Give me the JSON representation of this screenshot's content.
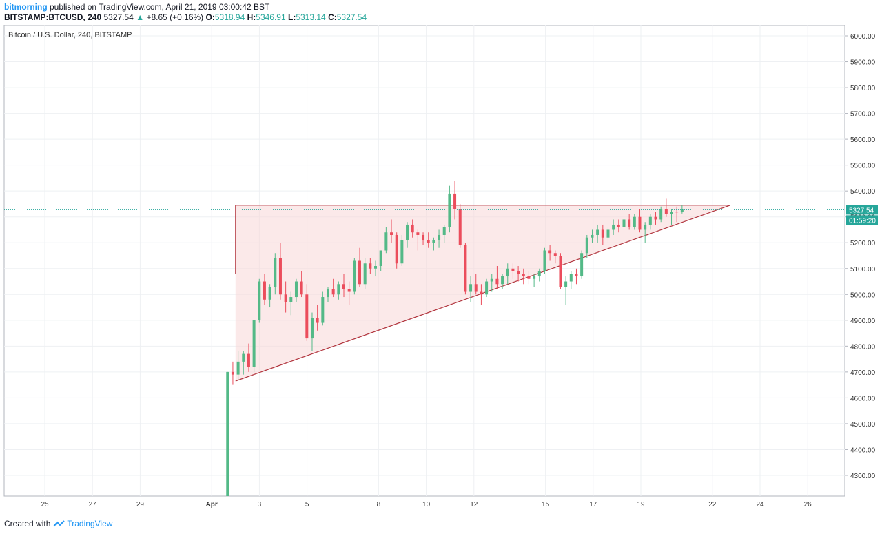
{
  "header": {
    "publisher": "bitmorning",
    "published_text": "published on TradingView.com, April 21, 2019 03:00:42 BST",
    "symbol": "BITSTAMP:BTCUSD, 240",
    "last": "5327.54",
    "change": "+8.65 (+0.16%)",
    "o_label": "O:",
    "o_value": "5318.94",
    "h_label": "H:",
    "h_value": "5346.91",
    "l_label": "L:",
    "l_value": "5313.14",
    "c_label": "C:",
    "c_value": "5327.54"
  },
  "footer": {
    "created_with": "Created with",
    "brand": "TradingView",
    "brand_icon": "tradingview-logo-icon"
  },
  "colors": {
    "up": "#53b987",
    "down": "#eb4d5c",
    "triangle_line": "#b2363f",
    "triangle_fill": "#f8d7d7",
    "price_line": "#26a69a",
    "grid": "#eef0f3"
  },
  "chart_data": {
    "type": "candlestick",
    "title": "Bitcoin / U.S. Dollar, 240, BITSTAMP",
    "ylim": [
      4220,
      6040
    ],
    "y_ticks": [
      "6000.00",
      "5900.00",
      "5800.00",
      "5700.00",
      "5600.00",
      "5500.00",
      "5400.00",
      "5300.00",
      "5200.00",
      "5100.00",
      "5000.00",
      "4900.00",
      "4800.00",
      "4700.00",
      "4600.00",
      "4500.00",
      "4400.00",
      "4300.00"
    ],
    "x_ticks": [
      "25",
      "27",
      "29",
      "Apr",
      "3",
      "5",
      "8",
      "10",
      "12",
      "15",
      "17",
      "19",
      "22",
      "24",
      "26"
    ],
    "x_tick_dates": [
      "2019-03-25",
      "2019-03-27",
      "2019-03-29",
      "2019-04-01",
      "2019-04-03",
      "2019-04-05",
      "2019-04-08",
      "2019-04-10",
      "2019-04-12",
      "2019-04-15",
      "2019-04-17",
      "2019-04-19",
      "2019-04-22",
      "2019-04-24",
      "2019-04-26"
    ],
    "price_label": "5327.54",
    "countdown_label": "01:59:20",
    "last_price": 5327.54,
    "candles": [
      [
        4110,
        4700,
        4080,
        4700
      ],
      [
        4700,
        4740,
        4650,
        4690
      ],
      [
        4690,
        4780,
        4670,
        4740
      ],
      [
        4740,
        4780,
        4690,
        4770
      ],
      [
        4770,
        4810,
        4700,
        4720
      ],
      [
        4720,
        4900,
        4700,
        4900
      ],
      [
        4900,
        5060,
        4890,
        5050
      ],
      [
        5050,
        5080,
        4960,
        4980
      ],
      [
        4980,
        5040,
        4950,
        5030
      ],
      [
        5030,
        5160,
        5000,
        5140
      ],
      [
        5140,
        5200,
        4980,
        5000
      ],
      [
        5000,
        5050,
        4930,
        4970
      ],
      [
        4970,
        5010,
        4920,
        4990
      ],
      [
        4990,
        5060,
        4970,
        5050
      ],
      [
        5050,
        5090,
        4990,
        5000
      ],
      [
        5000,
        5040,
        4820,
        4830
      ],
      [
        4830,
        4930,
        4780,
        4910
      ],
      [
        4910,
        4960,
        4860,
        4890
      ],
      [
        4890,
        5010,
        4880,
        4990
      ],
      [
        4990,
        5030,
        4970,
        5020
      ],
      [
        5020,
        5060,
        4990,
        5000
      ],
      [
        5000,
        5050,
        4980,
        5040
      ],
      [
        5040,
        5080,
        4990,
        5020
      ],
      [
        5020,
        5050,
        4960,
        5010
      ],
      [
        5010,
        5140,
        5000,
        5130
      ],
      [
        5130,
        5180,
        5030,
        5040
      ],
      [
        5040,
        5140,
        5020,
        5120
      ],
      [
        5120,
        5140,
        5080,
        5100
      ],
      [
        5100,
        5130,
        5070,
        5110
      ],
      [
        5110,
        5170,
        5090,
        5170
      ],
      [
        5170,
        5260,
        5160,
        5240
      ],
      [
        5240,
        5290,
        5200,
        5230
      ],
      [
        5230,
        5240,
        5100,
        5120
      ],
      [
        5120,
        5230,
        5110,
        5210
      ],
      [
        5210,
        5280,
        5180,
        5270
      ],
      [
        5270,
        5290,
        5220,
        5240
      ],
      [
        5240,
        5250,
        5170,
        5230
      ],
      [
        5230,
        5240,
        5190,
        5210
      ],
      [
        5210,
        5240,
        5180,
        5200
      ],
      [
        5200,
        5220,
        5170,
        5210
      ],
      [
        5210,
        5250,
        5180,
        5230
      ],
      [
        5230,
        5270,
        5200,
        5260
      ],
      [
        5260,
        5420,
        5240,
        5390
      ],
      [
        5390,
        5440,
        5290,
        5330
      ],
      [
        5330,
        5350,
        5180,
        5190
      ],
      [
        5190,
        5200,
        5000,
        5010
      ],
      [
        5010,
        5070,
        4970,
        5040
      ],
      [
        5040,
        5080,
        5000,
        5010
      ],
      [
        5010,
        5040,
        4960,
        5000
      ],
      [
        5000,
        5060,
        4990,
        5050
      ],
      [
        5050,
        5080,
        5010,
        5060
      ],
      [
        5060,
        5110,
        5020,
        5040
      ],
      [
        5040,
        5080,
        5020,
        5070
      ],
      [
        5070,
        5120,
        5040,
        5100
      ],
      [
        5100,
        5120,
        5060,
        5090
      ],
      [
        5090,
        5110,
        5050,
        5080
      ],
      [
        5080,
        5100,
        5040,
        5070
      ],
      [
        5070,
        5090,
        5040,
        5060
      ],
      [
        5060,
        5080,
        5030,
        5070
      ],
      [
        5070,
        5100,
        5050,
        5090
      ],
      [
        5090,
        5180,
        5080,
        5170
      ],
      [
        5170,
        5190,
        5130,
        5160
      ],
      [
        5160,
        5170,
        5120,
        5150
      ],
      [
        5150,
        5160,
        5020,
        5030
      ],
      [
        5030,
        5070,
        4960,
        5050
      ],
      [
        5050,
        5090,
        5020,
        5080
      ],
      [
        5080,
        5100,
        5040,
        5070
      ],
      [
        5070,
        5170,
        5060,
        5160
      ],
      [
        5160,
        5230,
        5140,
        5220
      ],
      [
        5220,
        5250,
        5200,
        5230
      ],
      [
        5230,
        5270,
        5200,
        5250
      ],
      [
        5250,
        5270,
        5190,
        5220
      ],
      [
        5220,
        5260,
        5200,
        5250
      ],
      [
        5250,
        5290,
        5230,
        5270
      ],
      [
        5270,
        5290,
        5240,
        5260
      ],
      [
        5260,
        5300,
        5240,
        5290
      ],
      [
        5290,
        5310,
        5250,
        5260
      ],
      [
        5260,
        5310,
        5250,
        5300
      ],
      [
        5300,
        5330,
        5240,
        5250
      ],
      [
        5250,
        5280,
        5200,
        5270
      ],
      [
        5270,
        5310,
        5250,
        5300
      ],
      [
        5300,
        5320,
        5270,
        5290
      ],
      [
        5290,
        5340,
        5280,
        5330
      ],
      [
        5330,
        5370,
        5300,
        5310
      ],
      [
        5310,
        5330,
        5270,
        5320
      ],
      [
        5320,
        5340,
        5280,
        5318
      ],
      [
        5318,
        5347,
        5313,
        5328
      ]
    ],
    "triangle": {
      "top_start": [
        "2019-04-02T00:00",
        5345
      ],
      "top_end": [
        "2019-04-22T18:00",
        5345
      ],
      "bottom_start": [
        "2019-04-02T00:00",
        4665
      ],
      "left_edge_low": [
        "2019-04-02T00:00",
        5080
      ]
    }
  }
}
